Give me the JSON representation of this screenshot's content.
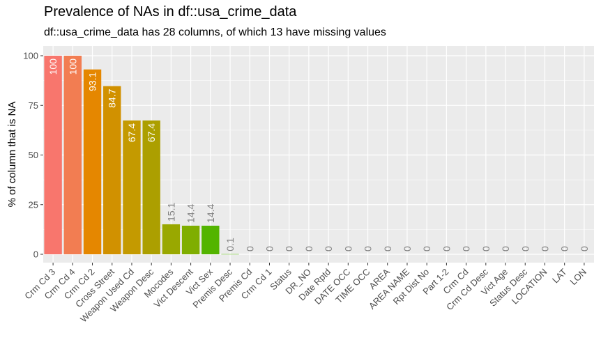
{
  "chart_data": {
    "type": "bar",
    "title": "Prevalence of NAs in df::usa_crime_data",
    "subtitle": "df::usa_crime_data has 28 columns, of which 13 have missing values",
    "ylabel": "% of column that is NA",
    "xlabel": "",
    "ylim": [
      0,
      100
    ],
    "yticks": [
      0,
      25,
      50,
      75,
      100
    ],
    "grid": true,
    "legend": "none",
    "categories": [
      "Crm Cd 3",
      "Crm Cd 4",
      "Crm Cd 2",
      "Cross Street",
      "Weapon Used Cd",
      "Weapon Desc",
      "Mocodes",
      "Vict Descent",
      "Vict Sex",
      "Premis Desc",
      "Premis Cd",
      "Crm Cd 1",
      "Status",
      "DR_NO",
      "Date Rptd",
      "DATE OCC",
      "TIME OCC",
      "AREA",
      "AREA NAME",
      "Rpt Dist No",
      "Part 1-2",
      "Crm Cd",
      "Crm Cd Desc",
      "Vict Age",
      "Status Desc",
      "LOCATION",
      "LAT",
      "LON"
    ],
    "values": [
      100,
      100,
      93.1,
      84.7,
      67.4,
      67.4,
      15.1,
      14.4,
      14.4,
      0.1,
      0,
      0,
      0,
      0,
      0,
      0,
      0,
      0,
      0,
      0,
      0,
      0,
      0,
      0,
      0,
      0,
      0,
      0
    ],
    "value_labels": [
      "100",
      "100",
      "93.1",
      "84.7",
      "67.4",
      "67.4",
      "15.1",
      "14.4",
      "14.4",
      "0.1",
      "0",
      "0",
      "0",
      "0",
      "0",
      "0",
      "0",
      "0",
      "0",
      "0",
      "0",
      "0",
      "0",
      "0",
      "0",
      "0",
      "0",
      "0"
    ],
    "colors": [
      "#F8766D",
      "#F27D52",
      "#E58700",
      "#D19100",
      "#C49A00",
      "#AC9F00",
      "#99A800",
      "#7FAE00",
      "#53B400"
    ],
    "panel_background": "#EBEBEB",
    "gridline_color": "#FFFFFF",
    "zero_value_label_color": "#7F7F7F"
  }
}
